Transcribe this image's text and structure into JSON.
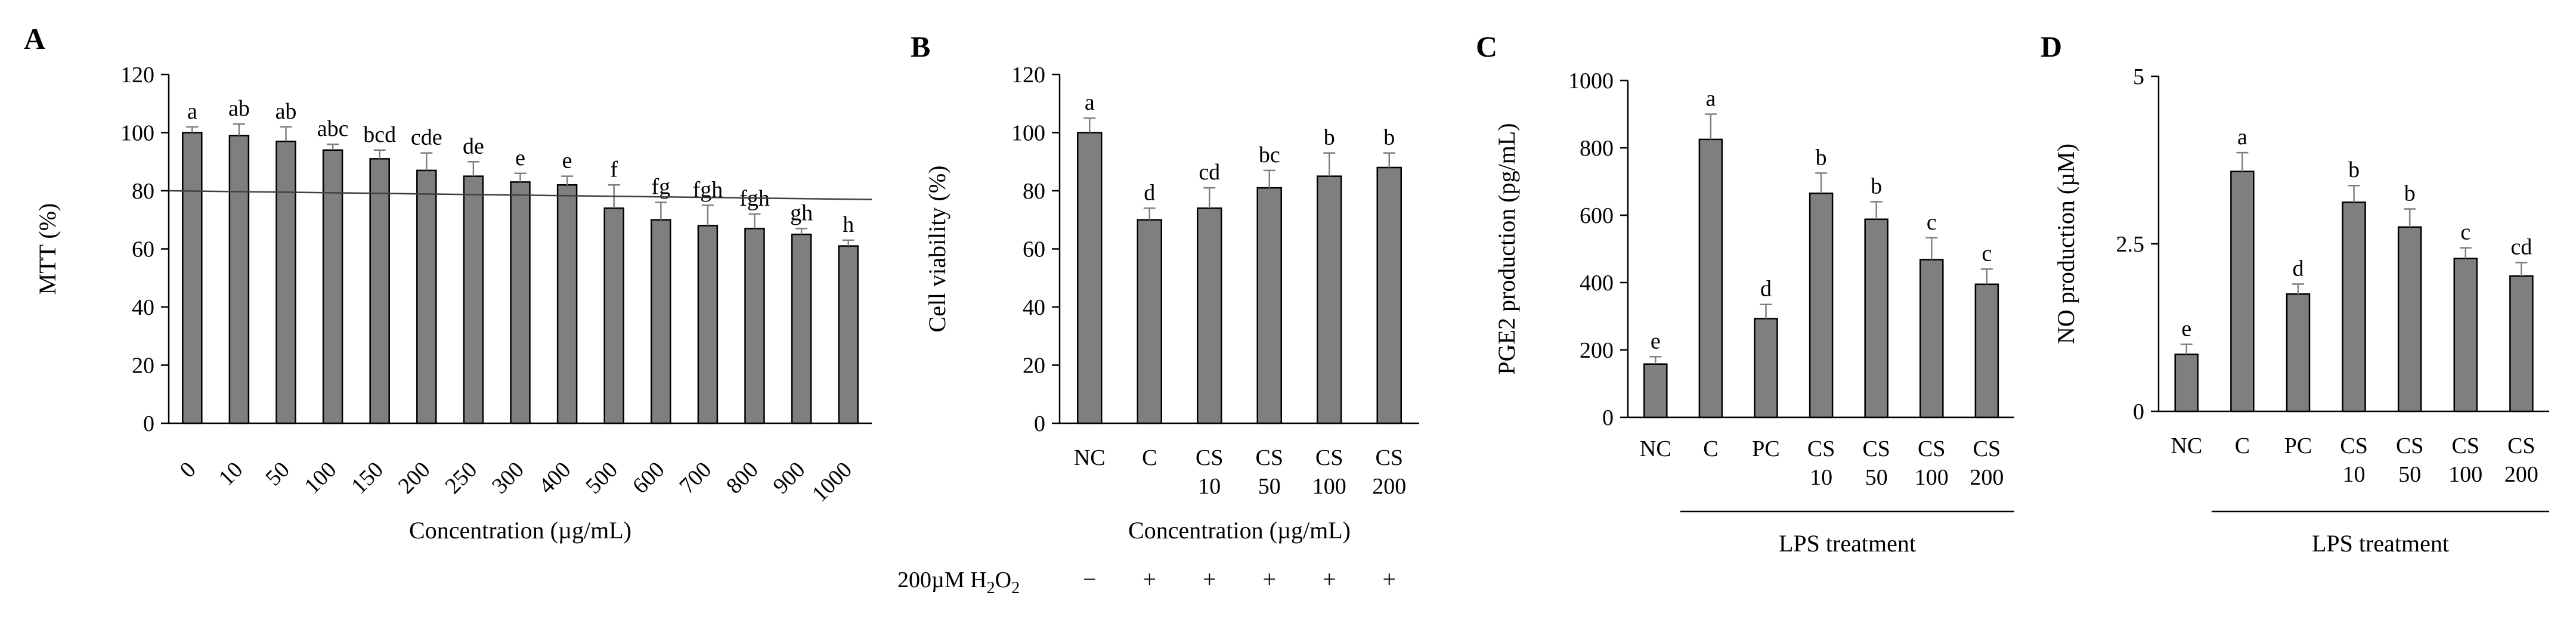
{
  "chart_data": [
    {
      "panel": "A",
      "type": "bar",
      "ylabel": "MTT (%)",
      "xlabel": "Concentration (µg/mL)",
      "ylim": [
        0,
        120
      ],
      "yticks": [
        0,
        20,
        40,
        60,
        80,
        100,
        120
      ],
      "categories": [
        "0",
        "10",
        "50",
        "100",
        "150",
        "200",
        "250",
        "300",
        "400",
        "500",
        "600",
        "700",
        "800",
        "900",
        "1000"
      ],
      "values": [
        100,
        99,
        97,
        94,
        91,
        87,
        85,
        83,
        82,
        74,
        70,
        68,
        67,
        65,
        61
      ],
      "errors": [
        2,
        4,
        5,
        2,
        3,
        6,
        5,
        3,
        3,
        8,
        6,
        7,
        5,
        2,
        2
      ],
      "letters": [
        "a",
        "ab",
        "ab",
        "abc",
        "bcd",
        "cde",
        "de",
        "e",
        "e",
        "f",
        "fg",
        "fgh",
        "fgh",
        "gh",
        "h"
      ],
      "trendline": {
        "start": 80,
        "end": 77
      }
    },
    {
      "panel": "B",
      "type": "bar",
      "ylabel": "Cell viability (%)",
      "xlabel": "Concentration (µg/mL)",
      "ylim": [
        0,
        120
      ],
      "yticks": [
        0,
        20,
        40,
        60,
        80,
        100,
        120
      ],
      "categories": [
        [
          "NC"
        ],
        [
          "C"
        ],
        [
          "CS",
          "10"
        ],
        [
          "CS",
          "50"
        ],
        [
          "CS",
          "100"
        ],
        [
          "CS",
          "200"
        ]
      ],
      "values": [
        100,
        70,
        74,
        81,
        85,
        88
      ],
      "errors": [
        5,
        4,
        7,
        6,
        8,
        5
      ],
      "letters": [
        "a",
        "d",
        "cd",
        "bc",
        "b",
        "b"
      ],
      "treatment_row": {
        "label": "200µM H",
        "sub": "2",
        "label_end": "O",
        "sub_end": "2",
        "marks": [
          "−",
          "+",
          "+",
          "+",
          "+",
          "+"
        ]
      }
    },
    {
      "panel": "C",
      "type": "bar",
      "ylabel": "PGE2 production (pg/mL)",
      "xlabel": "",
      "ylim": [
        0,
        1000
      ],
      "yticks": [
        0,
        200,
        400,
        600,
        800,
        1000
      ],
      "categories": [
        [
          "NC"
        ],
        [
          "C"
        ],
        [
          "PC"
        ],
        [
          "CS",
          "10"
        ],
        [
          "CS",
          "50"
        ],
        [
          "CS",
          "100"
        ],
        [
          "CS",
          "200"
        ]
      ],
      "values": [
        158,
        825,
        293,
        665,
        588,
        468,
        395
      ],
      "errors": [
        22,
        75,
        42,
        60,
        52,
        65,
        45
      ],
      "letters": [
        "e",
        "a",
        "d",
        "b",
        "b",
        "c",
        "c"
      ],
      "group_label": "LPS treatment"
    },
    {
      "panel": "D",
      "type": "bar",
      "ylabel": "NO production (µM)",
      "xlabel": "",
      "ylim": [
        0,
        5
      ],
      "yticks": [
        0,
        2.5,
        5
      ],
      "categories": [
        [
          "NC"
        ],
        [
          "C"
        ],
        [
          "PC"
        ],
        [
          "CS",
          "10"
        ],
        [
          "CS",
          "50"
        ],
        [
          "CS",
          "100"
        ],
        [
          "CS",
          "200"
        ]
      ],
      "values": [
        0.85,
        3.58,
        1.75,
        3.12,
        2.75,
        2.28,
        2.02
      ],
      "errors": [
        0.15,
        0.28,
        0.15,
        0.25,
        0.27,
        0.16,
        0.2
      ],
      "letters": [
        "e",
        "a",
        "d",
        "b",
        "b",
        "c",
        "cd"
      ],
      "group_label": "LPS treatment"
    }
  ]
}
